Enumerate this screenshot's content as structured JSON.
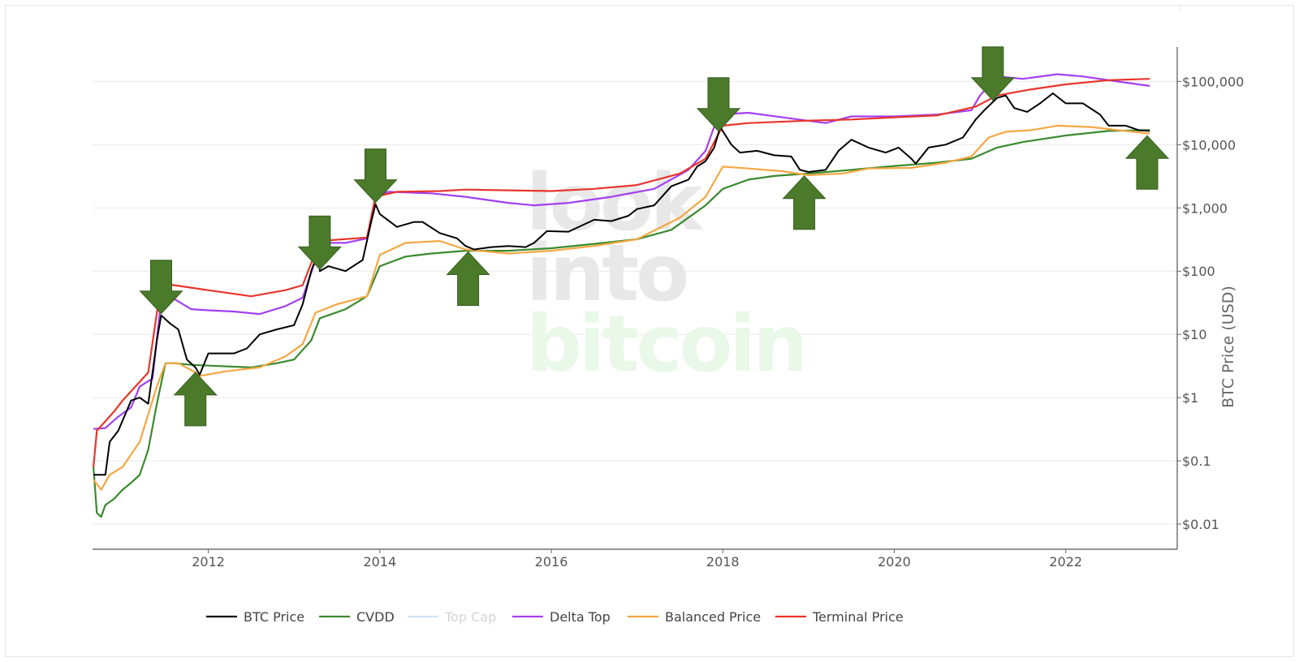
{
  "watermark": {
    "line1": "look",
    "line2": "into",
    "line3": "bitcoin"
  },
  "chart_data": {
    "type": "line",
    "title": "",
    "xlabel": "",
    "ylabel": "BTC Price (USD)",
    "yscale": "log",
    "xlim": [
      2010.65,
      2023.3
    ],
    "ylim": [
      0.004,
      350000
    ],
    "x_ticks": [
      {
        "value": 2012,
        "label": "2012"
      },
      {
        "value": 2014,
        "label": "2014"
      },
      {
        "value": 2016,
        "label": "2016"
      },
      {
        "value": 2018,
        "label": "2018"
      },
      {
        "value": 2020,
        "label": "2020"
      },
      {
        "value": 2022,
        "label": "2022"
      }
    ],
    "y_ticks": [
      {
        "value": 0.01,
        "label": "$0.01"
      },
      {
        "value": 0.1,
        "label": "$0.1"
      },
      {
        "value": 1,
        "label": "$1"
      },
      {
        "value": 10,
        "label": "$10"
      },
      {
        "value": 100,
        "label": "$100"
      },
      {
        "value": 1000,
        "label": "$1,000"
      },
      {
        "value": 10000,
        "label": "$10,000"
      },
      {
        "value": 100000,
        "label": "$100,000"
      }
    ],
    "series": [
      {
        "key": "btc",
        "name": "BTC Price",
        "color": "#000000",
        "visible": true,
        "points": [
          [
            2010.66,
            0.06
          ],
          [
            2010.8,
            0.06
          ],
          [
            2010.85,
            0.2
          ],
          [
            2010.95,
            0.3
          ],
          [
            2011.1,
            0.9
          ],
          [
            2011.2,
            1.0
          ],
          [
            2011.3,
            0.8
          ],
          [
            2011.4,
            8
          ],
          [
            2011.45,
            20
          ],
          [
            2011.55,
            15
          ],
          [
            2011.65,
            12
          ],
          [
            2011.75,
            4
          ],
          [
            2011.85,
            3
          ],
          [
            2011.9,
            2.3
          ],
          [
            2012.0,
            5
          ],
          [
            2012.1,
            5
          ],
          [
            2012.3,
            5
          ],
          [
            2012.45,
            6
          ],
          [
            2012.6,
            10
          ],
          [
            2012.8,
            12
          ],
          [
            2013.0,
            14
          ],
          [
            2013.1,
            30
          ],
          [
            2013.2,
            100
          ],
          [
            2013.28,
            200
          ],
          [
            2013.3,
            100
          ],
          [
            2013.4,
            120
          ],
          [
            2013.6,
            100
          ],
          [
            2013.8,
            150
          ],
          [
            2013.9,
            600
          ],
          [
            2013.95,
            1150
          ],
          [
            2014.0,
            800
          ],
          [
            2014.2,
            500
          ],
          [
            2014.4,
            600
          ],
          [
            2014.5,
            600
          ],
          [
            2014.7,
            400
          ],
          [
            2014.9,
            330
          ],
          [
            2015.0,
            250
          ],
          [
            2015.1,
            220
          ],
          [
            2015.3,
            240
          ],
          [
            2015.5,
            250
          ],
          [
            2015.7,
            240
          ],
          [
            2015.8,
            280
          ],
          [
            2015.95,
            430
          ],
          [
            2016.2,
            420
          ],
          [
            2016.5,
            650
          ],
          [
            2016.7,
            620
          ],
          [
            2016.9,
            750
          ],
          [
            2017.0,
            960
          ],
          [
            2017.2,
            1100
          ],
          [
            2017.4,
            2200
          ],
          [
            2017.6,
            2800
          ],
          [
            2017.7,
            4500
          ],
          [
            2017.8,
            5500
          ],
          [
            2017.9,
            9000
          ],
          [
            2017.97,
            19000
          ],
          [
            2018.1,
            10000
          ],
          [
            2018.2,
            7500
          ],
          [
            2018.4,
            8000
          ],
          [
            2018.6,
            6800
          ],
          [
            2018.8,
            6500
          ],
          [
            2018.9,
            4000
          ],
          [
            2019.0,
            3700
          ],
          [
            2019.2,
            4000
          ],
          [
            2019.35,
            8000
          ],
          [
            2019.5,
            12000
          ],
          [
            2019.7,
            9000
          ],
          [
            2019.9,
            7500
          ],
          [
            2020.05,
            9000
          ],
          [
            2020.2,
            6000
          ],
          [
            2020.25,
            5000
          ],
          [
            2020.4,
            9000
          ],
          [
            2020.6,
            10000
          ],
          [
            2020.8,
            13000
          ],
          [
            2020.95,
            25000
          ],
          [
            2021.05,
            35000
          ],
          [
            2021.2,
            55000
          ],
          [
            2021.3,
            60000
          ],
          [
            2021.4,
            38000
          ],
          [
            2021.55,
            33000
          ],
          [
            2021.7,
            45000
          ],
          [
            2021.85,
            65000
          ],
          [
            2022.0,
            45000
          ],
          [
            2022.2,
            45000
          ],
          [
            2022.4,
            30000
          ],
          [
            2022.5,
            20000
          ],
          [
            2022.7,
            20000
          ],
          [
            2022.85,
            17000
          ],
          [
            2022.98,
            16500
          ]
        ]
      },
      {
        "key": "cvdd",
        "name": "CVDD",
        "color": "#3a8a2e",
        "visible": true,
        "points": [
          [
            2010.66,
            0.08
          ],
          [
            2010.7,
            0.015
          ],
          [
            2010.75,
            0.013
          ],
          [
            2010.8,
            0.02
          ],
          [
            2010.9,
            0.025
          ],
          [
            2011.0,
            0.035
          ],
          [
            2011.1,
            0.045
          ],
          [
            2011.2,
            0.06
          ],
          [
            2011.3,
            0.15
          ],
          [
            2011.4,
            0.8
          ],
          [
            2011.5,
            3.5
          ],
          [
            2011.6,
            3.5
          ],
          [
            2011.8,
            3.3
          ],
          [
            2012.0,
            3.2
          ],
          [
            2012.5,
            3.0
          ],
          [
            2012.8,
            3.5
          ],
          [
            2013.0,
            4
          ],
          [
            2013.2,
            8
          ],
          [
            2013.3,
            18
          ],
          [
            2013.6,
            25
          ],
          [
            2013.85,
            40
          ],
          [
            2014.0,
            120
          ],
          [
            2014.3,
            170
          ],
          [
            2014.6,
            190
          ],
          [
            2015.0,
            210
          ],
          [
            2015.5,
            210
          ],
          [
            2016.0,
            230
          ],
          [
            2016.5,
            270
          ],
          [
            2017.0,
            320
          ],
          [
            2017.4,
            450
          ],
          [
            2017.8,
            1100
          ],
          [
            2018.0,
            2000
          ],
          [
            2018.3,
            2800
          ],
          [
            2018.6,
            3200
          ],
          [
            2019.0,
            3500
          ],
          [
            2019.5,
            4000
          ],
          [
            2020.0,
            4600
          ],
          [
            2020.5,
            5200
          ],
          [
            2020.9,
            6000
          ],
          [
            2021.2,
            9000
          ],
          [
            2021.5,
            11000
          ],
          [
            2022.0,
            14000
          ],
          [
            2022.5,
            16500
          ],
          [
            2022.98,
            17000
          ]
        ]
      },
      {
        "key": "topcap",
        "name": "Top Cap",
        "color": "#a5c8f0",
        "visible": false,
        "points": []
      },
      {
        "key": "delta",
        "name": "Delta Top",
        "color": "#a340f0",
        "visible": true,
        "points": [
          [
            2010.66,
            0.32
          ],
          [
            2010.8,
            0.33
          ],
          [
            2010.95,
            0.5
          ],
          [
            2011.1,
            0.7
          ],
          [
            2011.2,
            1.5
          ],
          [
            2011.35,
            2
          ],
          [
            2011.45,
            35
          ],
          [
            2011.55,
            40
          ],
          [
            2011.8,
            25
          ],
          [
            2012.0,
            24
          ],
          [
            2012.3,
            23
          ],
          [
            2012.6,
            21
          ],
          [
            2012.9,
            28
          ],
          [
            2013.1,
            38
          ],
          [
            2013.25,
            150
          ],
          [
            2013.3,
            280
          ],
          [
            2013.6,
            280
          ],
          [
            2013.85,
            330
          ],
          [
            2013.95,
            1500
          ],
          [
            2014.1,
            1800
          ],
          [
            2014.6,
            1700
          ],
          [
            2015.0,
            1500
          ],
          [
            2015.5,
            1200
          ],
          [
            2015.8,
            1100
          ],
          [
            2016.2,
            1200
          ],
          [
            2016.7,
            1500
          ],
          [
            2017.2,
            2000
          ],
          [
            2017.6,
            4000
          ],
          [
            2017.8,
            8000
          ],
          [
            2017.95,
            30000
          ],
          [
            2018.3,
            32000
          ],
          [
            2018.7,
            27000
          ],
          [
            2019.2,
            22000
          ],
          [
            2019.5,
            28000
          ],
          [
            2020.0,
            28000
          ],
          [
            2020.5,
            30000
          ],
          [
            2020.9,
            35000
          ],
          [
            2021.0,
            60000
          ],
          [
            2021.2,
            120000
          ],
          [
            2021.5,
            110000
          ],
          [
            2021.9,
            130000
          ],
          [
            2022.2,
            120000
          ],
          [
            2022.6,
            100000
          ],
          [
            2022.98,
            85000
          ]
        ]
      },
      {
        "key": "balanced",
        "name": "Balanced Price",
        "color": "#f5a742",
        "visible": true,
        "points": [
          [
            2010.66,
            0.05
          ],
          [
            2010.75,
            0.035
          ],
          [
            2010.85,
            0.06
          ],
          [
            2011.0,
            0.08
          ],
          [
            2011.2,
            0.2
          ],
          [
            2011.4,
            1.5
          ],
          [
            2011.5,
            3.5
          ],
          [
            2011.65,
            3.5
          ],
          [
            2011.85,
            2.5
          ],
          [
            2011.9,
            2.2
          ],
          [
            2012.2,
            2.6
          ],
          [
            2012.6,
            3.0
          ],
          [
            2012.9,
            4.5
          ],
          [
            2013.1,
            7
          ],
          [
            2013.25,
            22
          ],
          [
            2013.5,
            30
          ],
          [
            2013.85,
            40
          ],
          [
            2014.0,
            180
          ],
          [
            2014.3,
            280
          ],
          [
            2014.7,
            300
          ],
          [
            2015.0,
            220
          ],
          [
            2015.5,
            190
          ],
          [
            2016.0,
            210
          ],
          [
            2016.5,
            250
          ],
          [
            2017.0,
            320
          ],
          [
            2017.5,
            700
          ],
          [
            2017.8,
            1500
          ],
          [
            2018.0,
            4500
          ],
          [
            2018.3,
            4200
          ],
          [
            2018.7,
            3800
          ],
          [
            2019.0,
            3300
          ],
          [
            2019.4,
            3500
          ],
          [
            2019.7,
            4200
          ],
          [
            2020.2,
            4300
          ],
          [
            2020.6,
            5200
          ],
          [
            2020.9,
            6500
          ],
          [
            2021.1,
            13000
          ],
          [
            2021.3,
            16000
          ],
          [
            2021.6,
            17000
          ],
          [
            2021.9,
            20000
          ],
          [
            2022.3,
            19000
          ],
          [
            2022.6,
            17000
          ],
          [
            2022.98,
            15000
          ]
        ]
      },
      {
        "key": "terminal",
        "name": "Terminal Price",
        "color": "#e8352b",
        "visible": true,
        "points": [
          [
            2010.66,
            0.08
          ],
          [
            2010.7,
            0.3
          ],
          [
            2010.9,
            0.6
          ],
          [
            2011.0,
            0.9
          ],
          [
            2011.15,
            1.5
          ],
          [
            2011.3,
            2.5
          ],
          [
            2011.45,
            65
          ],
          [
            2011.6,
            60
          ],
          [
            2012.0,
            50
          ],
          [
            2012.5,
            40
          ],
          [
            2012.9,
            50
          ],
          [
            2013.1,
            60
          ],
          [
            2013.25,
            200
          ],
          [
            2013.3,
            300
          ],
          [
            2013.85,
            340
          ],
          [
            2013.95,
            1500
          ],
          [
            2014.2,
            1800
          ],
          [
            2014.7,
            1850
          ],
          [
            2015.0,
            1950
          ],
          [
            2015.5,
            1900
          ],
          [
            2016.0,
            1850
          ],
          [
            2016.5,
            2000
          ],
          [
            2017.0,
            2300
          ],
          [
            2017.5,
            3500
          ],
          [
            2017.8,
            6000
          ],
          [
            2018.0,
            20000
          ],
          [
            2018.3,
            22000
          ],
          [
            2019.0,
            24000
          ],
          [
            2019.5,
            25000
          ],
          [
            2020.0,
            27000
          ],
          [
            2020.5,
            29000
          ],
          [
            2020.95,
            40000
          ],
          [
            2021.2,
            60000
          ],
          [
            2021.6,
            75000
          ],
          [
            2022.0,
            90000
          ],
          [
            2022.5,
            105000
          ],
          [
            2022.98,
            110000
          ]
        ]
      }
    ],
    "annotations": [
      {
        "type": "arrow",
        "direction": "down",
        "x": 2011.45,
        "label": ""
      },
      {
        "type": "arrow",
        "direction": "up",
        "x": 2011.85,
        "label": ""
      },
      {
        "type": "arrow",
        "direction": "down",
        "x": 2013.3,
        "label": ""
      },
      {
        "type": "arrow",
        "direction": "down",
        "x": 2013.95,
        "label": ""
      },
      {
        "type": "arrow",
        "direction": "up",
        "x": 2015.03,
        "label": ""
      },
      {
        "type": "arrow",
        "direction": "down",
        "x": 2017.95,
        "label": ""
      },
      {
        "type": "arrow",
        "direction": "up",
        "x": 2018.95,
        "label": ""
      },
      {
        "type": "arrow",
        "direction": "down",
        "x": 2021.15,
        "label": ""
      },
      {
        "type": "arrow",
        "direction": "up",
        "x": 2022.95,
        "label": ""
      }
    ],
    "annotation_color": "#4a7a2a",
    "grid": true,
    "legend_position": "bottom"
  }
}
